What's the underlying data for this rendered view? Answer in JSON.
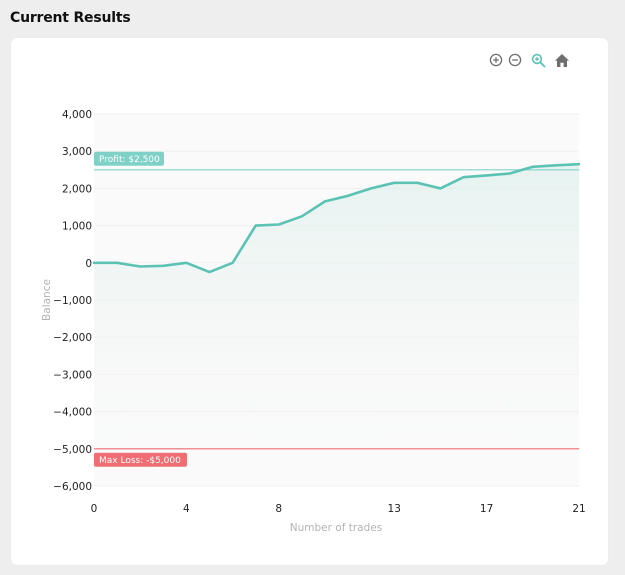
{
  "page": {
    "title": "Current Results"
  },
  "toolbar": {
    "zoom_in_icon": "zoom-in-icon",
    "zoom_out_icon": "zoom-out-icon",
    "zoom_select_icon": "magnifier-icon",
    "reset_icon": "home-icon"
  },
  "chart_data": {
    "type": "area",
    "title": "",
    "xlabel": "Number of trades",
    "ylabel": "Balance",
    "xlim": [
      0,
      21
    ],
    "ylim": [
      -6000,
      4000
    ],
    "x_ticks": [
      0,
      4,
      8,
      13,
      17,
      21
    ],
    "y_ticks": [
      4000,
      3000,
      2000,
      1000,
      0,
      -1000,
      -2000,
      -3000,
      -4000,
      -5000,
      -6000
    ],
    "y_tick_labels": [
      "4,000",
      "3,000",
      "2,000",
      "1,000",
      "0",
      "−1,000",
      "−2,000",
      "−3,000",
      "−4,000",
      "−5,000",
      "−6,000"
    ],
    "grid": true,
    "series": [
      {
        "x": [
          0,
          1,
          2,
          3,
          4,
          5,
          6,
          7,
          8,
          9,
          10,
          11,
          12,
          13,
          14,
          15,
          16,
          17,
          18,
          19,
          20,
          21
        ],
        "values": [
          0,
          0,
          -100,
          -80,
          0,
          -250,
          0,
          1000,
          1030,
          1250,
          1650,
          1800,
          2000,
          2150,
          2150,
          2000,
          2300,
          2350,
          2400,
          2580,
          2620,
          2650
        ]
      }
    ],
    "annotations": [
      {
        "label": "Profit: $2,500",
        "y": 2500,
        "color": "#7fd1c7"
      },
      {
        "label": "Max Loss: -$5,000",
        "y": -5000,
        "color": "#ee6e73"
      }
    ],
    "colors": {
      "line": "#5cc3b4",
      "profit_line": "#7fd1c7",
      "loss_line": "#ee6e73",
      "icon": "#6e6e6e",
      "icon_active": "#5cc3b4"
    }
  }
}
